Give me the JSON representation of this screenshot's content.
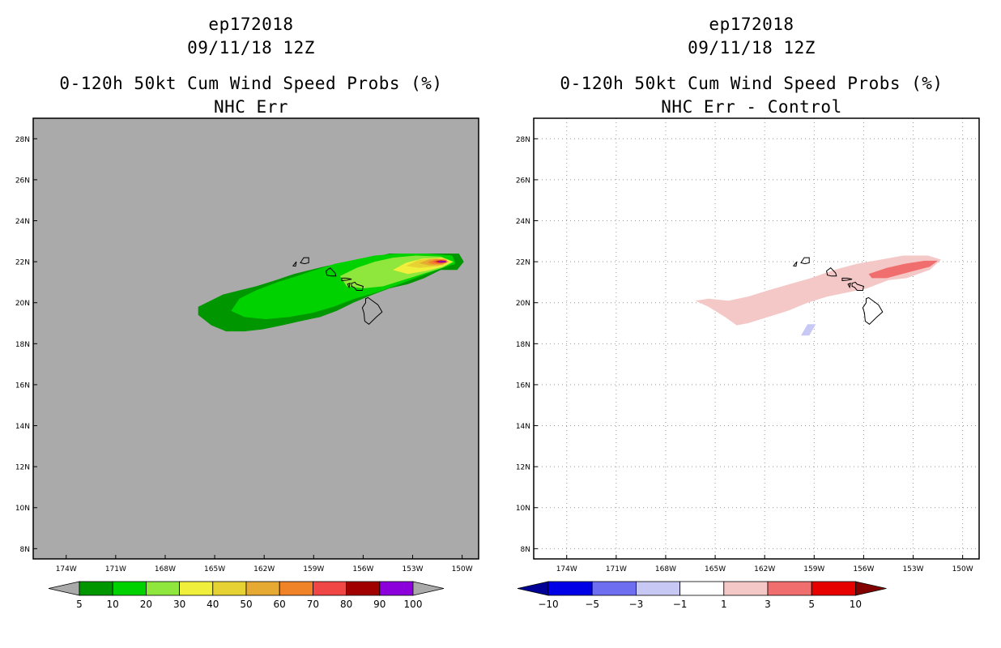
{
  "left_panel": {
    "storm_id": "ep172018",
    "datetime": "09/11/18 12Z",
    "title": "0-120h 50kt Cum Wind Speed Probs (%)",
    "subtitle": "NHC Err"
  },
  "right_panel": {
    "storm_id": "ep172018",
    "datetime": "09/11/18 12Z",
    "title": "0-120h 50kt Cum Wind Speed Probs (%)",
    "subtitle": "NHC Err - Control"
  },
  "chart_data": [
    {
      "type": "heatmap",
      "title": "0-120h 50kt Cum Wind Speed Probs (%)",
      "subtitle": "NHC Err",
      "xlim": [
        -176,
        -149
      ],
      "ylim": [
        7.5,
        29
      ],
      "x_ticks": [
        -174,
        -171,
        -168,
        -165,
        -162,
        -159,
        -156,
        -153,
        -150
      ],
      "x_tick_labels": [
        "174W",
        "171W",
        "168W",
        "165W",
        "162W",
        "159W",
        "156W",
        "153W",
        "150W"
      ],
      "y_ticks": [
        8,
        10,
        12,
        14,
        16,
        18,
        20,
        22,
        24,
        26,
        28
      ],
      "y_tick_labels": [
        "8N",
        "10N",
        "12N",
        "14N",
        "16N",
        "18N",
        "20N",
        "22N",
        "24N",
        "26N",
        "28N"
      ],
      "grid": false,
      "background": "#aaaaaa",
      "colorbar": {
        "labels": [
          "5",
          "10",
          "20",
          "30",
          "40",
          "50",
          "60",
          "70",
          "80",
          "90",
          "100"
        ],
        "colors": [
          "#009600",
          "#00d200",
          "#8fe63c",
          "#f0f03c",
          "#e6d232",
          "#e6aa32",
          "#f08228",
          "#f04646",
          "#a00000",
          "#8c00dc"
        ],
        "under_color": "#aaaaaa",
        "over_color": "#aaaaaa"
      },
      "contours": [
        {
          "level": 5,
          "color": "#009600",
          "points": [
            [
              -166,
              19.8
            ],
            [
              -165.5,
              20
            ],
            [
              -164.5,
              20.4
            ],
            [
              -163.5,
              20.6
            ],
            [
              -162.5,
              20.8
            ],
            [
              -161.3,
              21.1
            ],
            [
              -160.2,
              21.4
            ],
            [
              -159.2,
              21.6
            ],
            [
              -158.2,
              21.8
            ],
            [
              -156.8,
              22
            ],
            [
              -155.5,
              22.2
            ],
            [
              -154.4,
              22.4
            ],
            [
              -152.7,
              22.4
            ],
            [
              -151.3,
              22.4
            ],
            [
              -150.2,
              22.4
            ],
            [
              -149.9,
              22
            ],
            [
              -150.3,
              21.6
            ],
            [
              -151.3,
              21.6
            ],
            [
              -152.3,
              21.2
            ],
            [
              -153.3,
              20.9
            ],
            [
              -154.4,
              20.7
            ],
            [
              -155.4,
              20.4
            ],
            [
              -156.6,
              20
            ],
            [
              -157.6,
              19.6
            ],
            [
              -158.6,
              19.3
            ],
            [
              -159.8,
              19.1
            ],
            [
              -160.9,
              18.9
            ],
            [
              -162.1,
              18.7
            ],
            [
              -163.2,
              18.6
            ],
            [
              -164.3,
              18.6
            ],
            [
              -165.2,
              18.9
            ],
            [
              -166,
              19.4
            ]
          ]
        },
        {
          "level": 10,
          "color": "#00d200",
          "points": [
            [
              -164,
              19.6
            ],
            [
              -163.5,
              20.2
            ],
            [
              -162.5,
              20.6
            ],
            [
              -161.2,
              21
            ],
            [
              -160,
              21.3
            ],
            [
              -158.9,
              21.6
            ],
            [
              -157.7,
              21.9
            ],
            [
              -156.5,
              22.1
            ],
            [
              -155.3,
              22.3
            ],
            [
              -153.8,
              22.4
            ],
            [
              -152.2,
              22.4
            ],
            [
              -150.6,
              22.3
            ],
            [
              -150.4,
              21.9
            ],
            [
              -151.2,
              21.7
            ],
            [
              -152.5,
              21.3
            ],
            [
              -153.8,
              20.9
            ],
            [
              -155.2,
              20.5
            ],
            [
              -156.5,
              20.2
            ],
            [
              -157.8,
              19.8
            ],
            [
              -159.1,
              19.5
            ],
            [
              -160.5,
              19.3
            ],
            [
              -161.9,
              19.2
            ],
            [
              -163.2,
              19.3
            ]
          ]
        },
        {
          "level": 20,
          "color": "#8fe63c",
          "points": [
            [
              -157.4,
              21.3
            ],
            [
              -156.4,
              21.7
            ],
            [
              -155.3,
              22
            ],
            [
              -154.2,
              22.2
            ],
            [
              -152.8,
              22.3
            ],
            [
              -151.3,
              22.25
            ],
            [
              -150.5,
              22
            ],
            [
              -151.2,
              21.7
            ],
            [
              -152.4,
              21.4
            ],
            [
              -153.6,
              21.1
            ],
            [
              -154.8,
              20.8
            ],
            [
              -156,
              20.7
            ],
            [
              -157,
              20.8
            ]
          ]
        },
        {
          "level": 30,
          "color": "#f0f03c",
          "points": [
            [
              -154.2,
              21.6
            ],
            [
              -153.4,
              21.95
            ],
            [
              -152.4,
              22.15
            ],
            [
              -151.2,
              22.2
            ],
            [
              -150.6,
              22
            ],
            [
              -151.2,
              21.75
            ],
            [
              -152.2,
              21.55
            ],
            [
              -153.3,
              21.4
            ]
          ]
        },
        {
          "level": 40,
          "color": "#e6d232",
          "points": [
            [
              -153.4,
              21.8
            ],
            [
              -152.6,
              22.1
            ],
            [
              -151.5,
              22.17
            ],
            [
              -150.8,
              22
            ],
            [
              -151.5,
              21.78
            ],
            [
              -152.6,
              21.7
            ]
          ]
        },
        {
          "level": 50,
          "color": "#e6aa32",
          "points": [
            [
              -152.6,
              21.93
            ],
            [
              -152,
              22.12
            ],
            [
              -151.1,
              22.14
            ],
            [
              -150.8,
              22
            ],
            [
              -151.2,
              21.84
            ],
            [
              -152,
              21.82
            ]
          ]
        },
        {
          "level": 60,
          "color": "#f08228",
          "points": [
            [
              -152.1,
              21.98
            ],
            [
              -151.6,
              22.11
            ],
            [
              -150.95,
              22.1
            ],
            [
              -150.9,
              21.97
            ],
            [
              -151.3,
              21.88
            ],
            [
              -151.8,
              21.88
            ]
          ]
        },
        {
          "level": 70,
          "color": "#f04646",
          "points": [
            [
              -151.8,
              22
            ],
            [
              -151.4,
              22.08
            ],
            [
              -150.95,
              22.06
            ],
            [
              -150.95,
              21.96
            ],
            [
              -151.4,
              21.92
            ]
          ]
        },
        {
          "level": 80,
          "color": "#a00000",
          "points": [
            [
              -151.6,
              22.01
            ],
            [
              -151.3,
              22.06
            ],
            [
              -151.0,
              22.04
            ],
            [
              -151.0,
              21.97
            ],
            [
              -151.3,
              21.95
            ]
          ]
        },
        {
          "level": 90,
          "color": "#8c00dc",
          "points": [
            [
              -151.45,
              22.03
            ],
            [
              -151.0,
              22.04
            ],
            [
              -151.0,
              21.97
            ],
            [
              -151.45,
              21.98
            ]
          ]
        }
      ]
    },
    {
      "type": "heatmap",
      "title": "0-120h 50kt Cum Wind Speed Probs (%)",
      "subtitle": "NHC Err - Control",
      "xlim": [
        -176,
        -149
      ],
      "ylim": [
        7.5,
        29
      ],
      "x_ticks": [
        -174,
        -171,
        -168,
        -165,
        -162,
        -159,
        -156,
        -153,
        -150
      ],
      "x_tick_labels": [
        "174W",
        "171W",
        "168W",
        "165W",
        "162W",
        "159W",
        "156W",
        "153W",
        "150W"
      ],
      "y_ticks": [
        8,
        10,
        12,
        14,
        16,
        18,
        20,
        22,
        24,
        26,
        28
      ],
      "y_tick_labels": [
        "8N",
        "10N",
        "12N",
        "14N",
        "16N",
        "18N",
        "20N",
        "22N",
        "24N",
        "26N",
        "28N"
      ],
      "grid": true,
      "background": "#ffffff",
      "colorbar": {
        "labels": [
          "-10",
          "-5",
          "-3",
          "-1",
          "1",
          "3",
          "5",
          "10"
        ],
        "colors": [
          "#0000e6",
          "#6e6ef0",
          "#c8c8f5",
          "#ffffff",
          "#f5c8c8",
          "#f06e6e",
          "#e60000"
        ],
        "under_color": "#000096",
        "over_color": "#820000"
      },
      "contours": [
        {
          "level": 1,
          "color": "#f5c8c8",
          "points": [
            [
              -166.2,
              20.1
            ],
            [
              -165.4,
              20.2
            ],
            [
              -164.2,
              20.1
            ],
            [
              -163,
              20.3
            ],
            [
              -161.8,
              20.6
            ],
            [
              -160.5,
              20.9
            ],
            [
              -159.2,
              21.2
            ],
            [
              -157.8,
              21.6
            ],
            [
              -156.4,
              21.9
            ],
            [
              -155,
              22.1
            ],
            [
              -153.6,
              22.3
            ],
            [
              -152.1,
              22.3
            ],
            [
              -151.3,
              22.1
            ],
            [
              -152,
              21.6
            ],
            [
              -153.4,
              21.2
            ],
            [
              -154.5,
              21.1
            ],
            [
              -155.8,
              20.7
            ],
            [
              -157,
              20.5
            ],
            [
              -158.2,
              20.3
            ],
            [
              -159.4,
              20
            ],
            [
              -160.6,
              19.6
            ],
            [
              -161.8,
              19.3
            ],
            [
              -163,
              19
            ],
            [
              -163.7,
              18.9
            ],
            [
              -164.4,
              19.3
            ],
            [
              -165.4,
              19.8
            ]
          ]
        },
        {
          "level": 3,
          "color": "#f06e6e",
          "points": [
            [
              -155.7,
              21.4
            ],
            [
              -154.6,
              21.7
            ],
            [
              -153.5,
              21.9
            ],
            [
              -152.3,
              22.05
            ],
            [
              -151.5,
              22.05
            ],
            [
              -152,
              21.75
            ],
            [
              -153.2,
              21.5
            ],
            [
              -154.6,
              21.2
            ],
            [
              -155.5,
              21.2
            ]
          ]
        },
        {
          "level": -1,
          "color": "#c8c8f5",
          "points": [
            [
              -159.8,
              18.4
            ],
            [
              -159.4,
              18.95
            ],
            [
              -158.9,
              18.95
            ],
            [
              -159.3,
              18.4
            ]
          ]
        }
      ]
    }
  ]
}
